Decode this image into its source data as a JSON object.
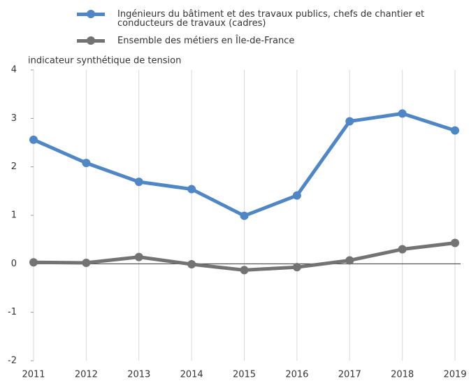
{
  "chart_data": {
    "type": "line",
    "ylabel": "indicateur synthétique de tension",
    "x": [
      2011,
      2012,
      2013,
      2014,
      2015,
      2016,
      2017,
      2018,
      2019
    ],
    "xlim": [
      2011,
      2019
    ],
    "ylim": [
      -2,
      4
    ],
    "yticks": [
      -2,
      -1,
      0,
      1,
      2,
      3,
      4
    ],
    "grid": true,
    "series": [
      {
        "name": "Ingénieurs du bâtiment et des travaux publics, chefs de chantier et conducteurs de travaux (cadres)",
        "color": "#4f86c6",
        "values": [
          2.56,
          2.08,
          1.69,
          1.54,
          0.99,
          1.41,
          2.94,
          3.1,
          2.75
        ]
      },
      {
        "name": "Ensemble des métiers en Île-de-France",
        "color": "#737373",
        "values": [
          0.03,
          0.02,
          0.14,
          -0.01,
          -0.13,
          -0.07,
          0.07,
          0.3,
          0.43
        ]
      }
    ]
  }
}
